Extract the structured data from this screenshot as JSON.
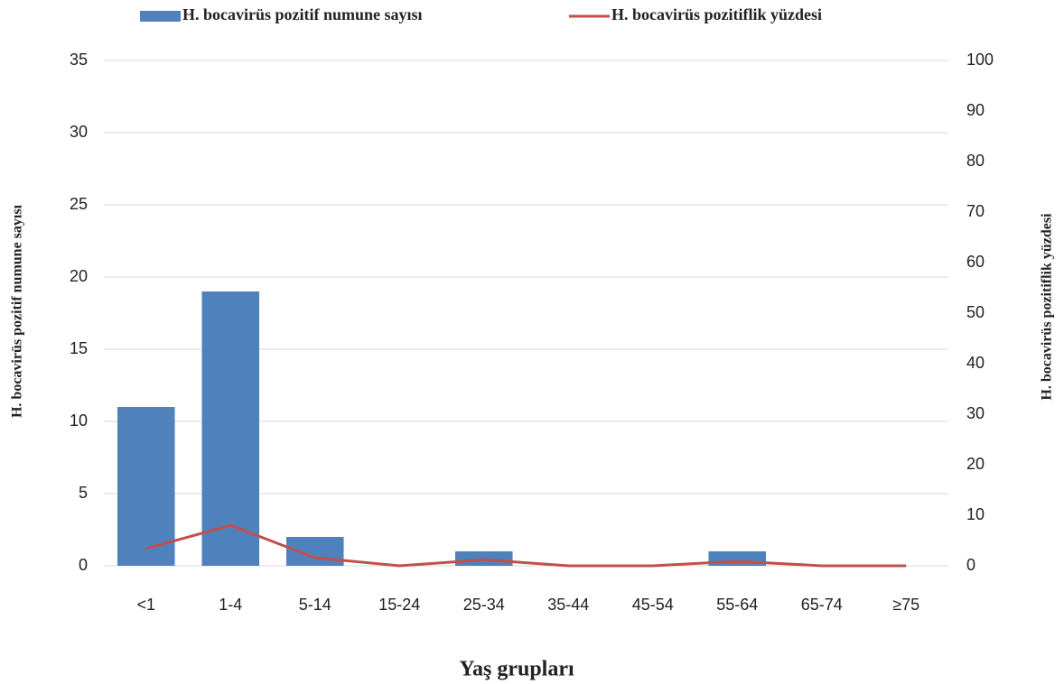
{
  "chart_data": {
    "type": "bar",
    "x_label": "Yaş grupları",
    "y_label": "H. bocavirüs pozitif numune sayısı",
    "y2_label": "H. bocavirüs pozitiflik yüzdesi",
    "categories": [
      "<1",
      "1-4",
      "5-14",
      "15-24",
      "25-34",
      "35-44",
      "45-54",
      "55-64",
      "65-74",
      "≥75"
    ],
    "series": [
      {
        "name": "H. bocavirüs pozitif numune sayısı",
        "type": "bar",
        "color": "#4f81bd",
        "values": [
          11,
          19,
          2,
          0,
          1,
          0,
          0,
          1,
          0,
          0
        ]
      },
      {
        "name": "H. bocavirüs pozitiflik yüzdesi",
        "type": "line",
        "axis": "y2",
        "color": "#c0504d",
        "values": [
          3.4,
          8.0,
          1.6,
          0,
          1.2,
          0,
          0,
          0.9,
          0,
          0
        ]
      }
    ],
    "ylim": [
      0,
      35
    ],
    "yticks": [
      0,
      5,
      10,
      15,
      20,
      25,
      30,
      35
    ],
    "y2lim": [
      0,
      100
    ],
    "y2ticks": [
      0,
      10,
      20,
      30,
      40,
      50,
      60,
      70,
      80,
      90,
      100
    ],
    "grid": true,
    "legend": "top"
  }
}
